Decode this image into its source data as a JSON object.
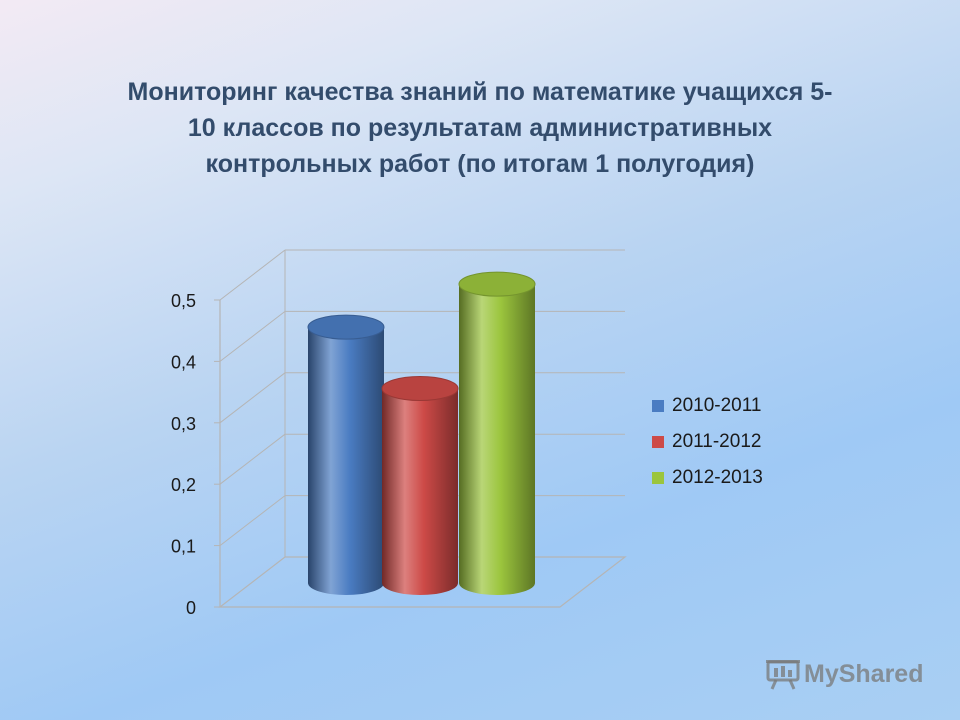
{
  "header": {
    "title_lines": [
      "Мониторинг качества знаний по математике  учащихся 5-",
      "10 классов по результатам административных",
      "контрольных работ (по итогам 1 полугодия)"
    ]
  },
  "chart_data": {
    "type": "bar",
    "style": "3d-cylinder",
    "title": "Мониторинг качества знаний по математике  учащихся 5-10 классов по результатам административных контрольных работ (по итогам 1 полугодия)",
    "xlabel": "",
    "ylabel": "",
    "ylim": [
      0,
      0.5
    ],
    "y_ticks": [
      "0",
      "0,1",
      "0,2",
      "0,3",
      "0,4",
      "0,5"
    ],
    "grid": true,
    "legend_position": "right",
    "series": [
      {
        "name": "2010-2011",
        "value": 0.42,
        "color": "#4a7cc2"
      },
      {
        "name": "2011-2012",
        "value": 0.32,
        "color": "#cd4a47"
      },
      {
        "name": "2012-2013",
        "value": 0.49,
        "color": "#9bc53d"
      }
    ]
  },
  "legend": {
    "items": [
      {
        "label": "2010-2011",
        "color": "#4a7cc2"
      },
      {
        "label": "2011-2012",
        "color": "#cd4a47"
      },
      {
        "label": "2012-2013",
        "color": "#9bc53d"
      }
    ]
  },
  "watermark": {
    "text": "MyShared",
    "icon": "presentation-board-icon"
  }
}
